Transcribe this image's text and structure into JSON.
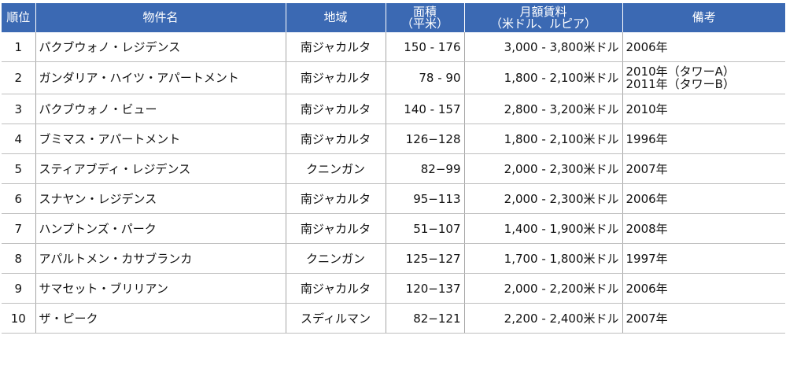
{
  "header": {
    "rank": "順位",
    "name": "物件名",
    "region": "地域",
    "area_line1": "面積",
    "area_line2": "（平米）",
    "rent_line1": "月額賃料",
    "rent_line2": "（米ドル、ルピア）",
    "note": "備考"
  },
  "rows": [
    {
      "rank": "1",
      "name": "パクブウォノ・レジデンス",
      "region": "南ジャカルタ",
      "area": "150 - 176",
      "rent": "3,000 - 3,800米ドル",
      "note1": "2006年",
      "note2": ""
    },
    {
      "rank": "2",
      "name": "ガンダリア・ハイツ・アパートメント",
      "region": "南ジャカルタ",
      "area": "78 - 90",
      "rent": "1,800 - 2,100米ドル",
      "note1": "2010年（タワーA）",
      "note2": "2011年（タワーB）"
    },
    {
      "rank": "3",
      "name": "パクブウォノ・ビュー",
      "region": "南ジャカルタ",
      "area": "140 - 157",
      "rent": "2,800 - 3,200米ドル",
      "note1": "2010年",
      "note2": ""
    },
    {
      "rank": "4",
      "name": "ブミマス・アパートメント",
      "region": "南ジャカルタ",
      "area": "126−128",
      "rent": "1,800 - 2,100米ドル",
      "note1": "1996年",
      "note2": ""
    },
    {
      "rank": "5",
      "name": "スティアブディ・レジデンス",
      "region": "クニンガン",
      "area": "82−99",
      "rent": "2,000 - 2,300米ドル",
      "note1": "2007年",
      "note2": ""
    },
    {
      "rank": "6",
      "name": "スナヤン・レジデンス",
      "region": "南ジャカルタ",
      "area": "95−113",
      "rent": "2,000 - 2,300米ドル",
      "note1": "2006年",
      "note2": ""
    },
    {
      "rank": "7",
      "name": "ハンプトンズ・パーク",
      "region": "南ジャカルタ",
      "area": "51−107",
      "rent": "1,400 - 1,900米ドル",
      "note1": "2008年",
      "note2": ""
    },
    {
      "rank": "8",
      "name": "アパルトメン・カサブランカ",
      "region": "クニンガン",
      "area": "125−127",
      "rent": "1,700 - 1,800米ドル",
      "note1": "1997年",
      "note2": ""
    },
    {
      "rank": "9",
      "name": "サマセット・ブリリアン",
      "region": "南ジャカルタ",
      "area": "120−137",
      "rent": "2,000 - 2,200米ドル",
      "note1": "2006年",
      "note2": ""
    },
    {
      "rank": "10",
      "name": "ザ・ピーク",
      "region": "スディルマン",
      "area": "82−121",
      "rent": "2,200 - 2,400米ドル",
      "note1": "2007年",
      "note2": ""
    }
  ],
  "colors": {
    "header_bg": "#3b69b3",
    "header_text": "#ffffff",
    "row_border": "#bfbfbf"
  }
}
